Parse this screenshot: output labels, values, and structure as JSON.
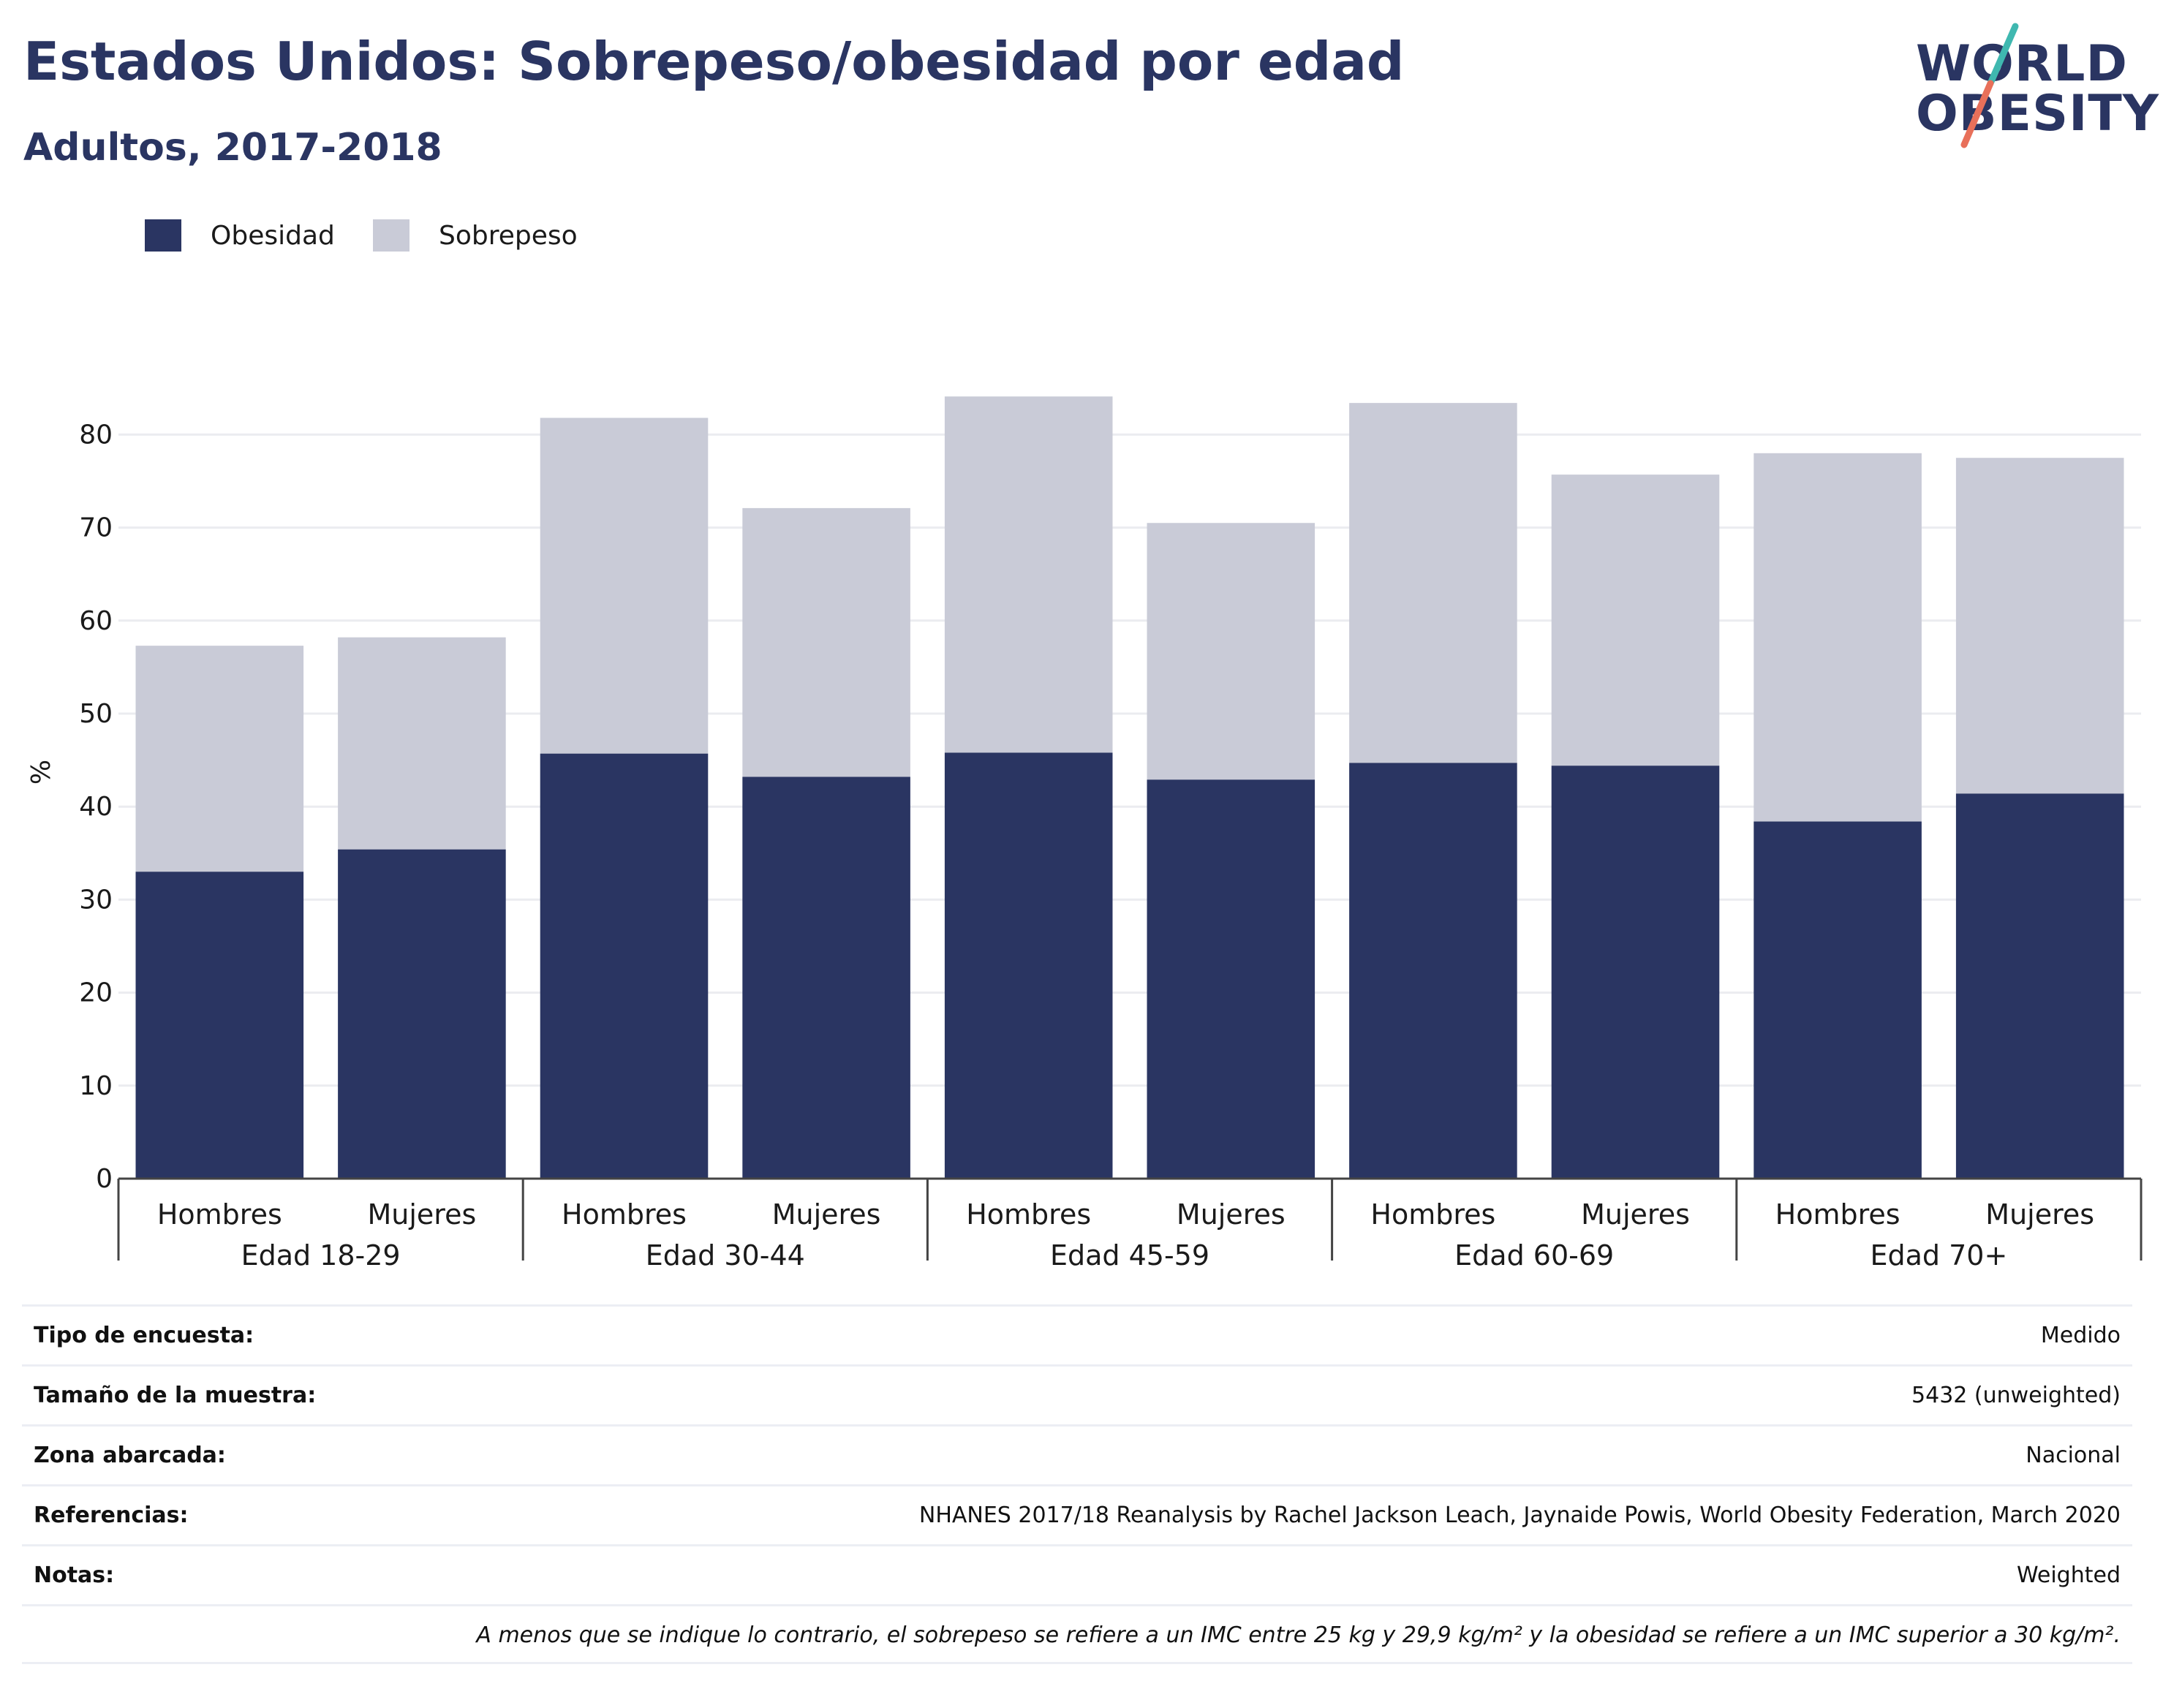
{
  "header": {
    "title": "Estados Unidos: Sobrepeso/obesidad por edad",
    "subtitle": "Adultos, 2017-2018"
  },
  "logo": {
    "line1": "WORLD",
    "line2": "OBESITY",
    "accent_colors": [
      "#3fb8b0",
      "#e8705a"
    ]
  },
  "legend": {
    "items": [
      {
        "label": "Obesidad",
        "color": "#2a3562"
      },
      {
        "label": "Sobrepeso",
        "color": "#c9cbd7"
      }
    ]
  },
  "chart_data": {
    "type": "bar",
    "stacked": true,
    "ylabel": "%",
    "ylim": [
      0,
      90
    ],
    "yticks": [
      0,
      10,
      20,
      30,
      40,
      50,
      60,
      70,
      80
    ],
    "grid": true,
    "legend_position": "top-left",
    "groups": [
      "Edad 18-29",
      "Edad 30-44",
      "Edad 45-59",
      "Edad 60-69",
      "Edad 70+"
    ],
    "subcategories": [
      "Hombres",
      "Mujeres"
    ],
    "categories": [
      "Hombres",
      "Mujeres",
      "Hombres",
      "Mujeres",
      "Hombres",
      "Mujeres",
      "Hombres",
      "Mujeres",
      "Hombres",
      "Mujeres"
    ],
    "series": [
      {
        "name": "Obesidad",
        "color": "#2a3562",
        "values": [
          33.0,
          35.4,
          45.7,
          43.2,
          45.8,
          42.9,
          44.7,
          44.4,
          38.4,
          41.4
        ]
      },
      {
        "name": "Sobrepeso",
        "color": "#c9cbd7",
        "values": [
          24.3,
          22.8,
          36.1,
          28.9,
          38.3,
          27.6,
          38.7,
          31.3,
          39.6,
          36.1
        ]
      }
    ]
  },
  "info_table": {
    "rows": [
      {
        "key": "Tipo de encuesta:",
        "value": "Medido"
      },
      {
        "key": "Tamaño de la muestra:",
        "value": "5432 (unweighted)"
      },
      {
        "key": "Zona abarcada:",
        "value": "Nacional"
      },
      {
        "key": "Referencias:",
        "value": "NHANES 2017/18 Reanalysis by Rachel Jackson Leach, Jaynaide Powis, World Obesity Federation, March 2020"
      },
      {
        "key": "Notas:",
        "value": "Weighted"
      }
    ],
    "footnote": "A menos que se indique lo contrario, el sobrepeso se refiere a un IMC entre 25 kg y 29,9 kg/m² y la obesidad se refiere a un IMC superior a 30 kg/m²."
  }
}
